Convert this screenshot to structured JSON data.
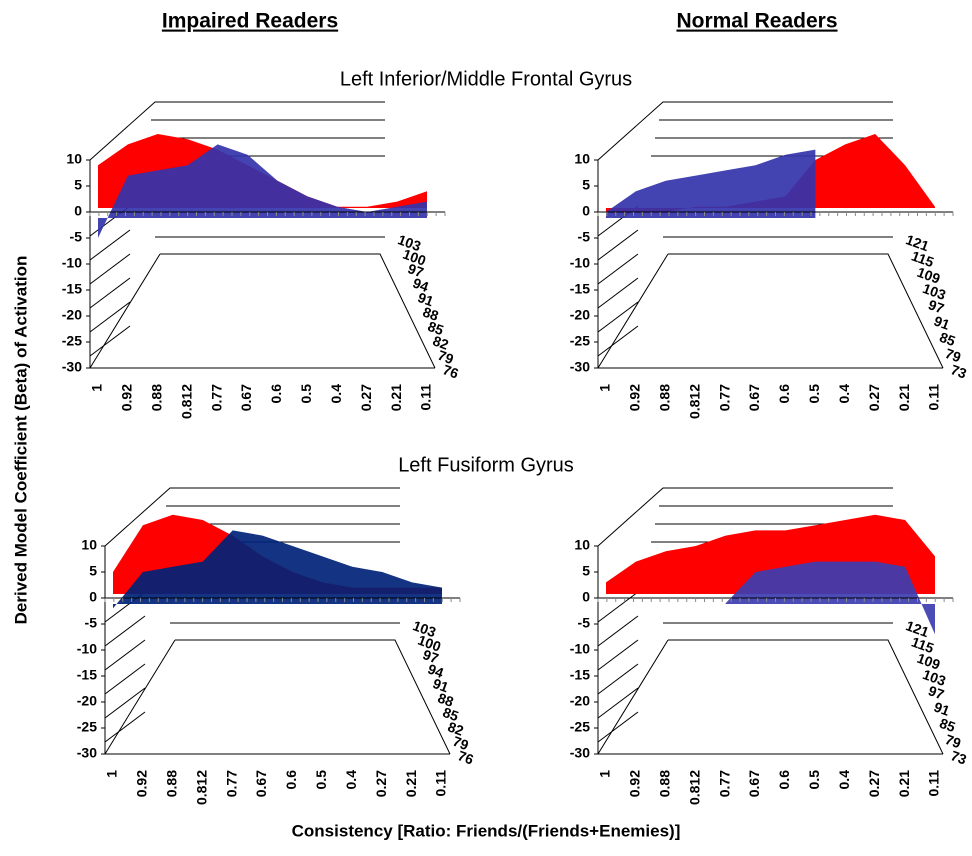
{
  "figure": {
    "column_titles": [
      "Impaired Readers",
      "Normal Readers"
    ],
    "row_titles": [
      "Left Inferior/Middle Frontal Gyrus",
      "Left Fusiform Gyrus"
    ],
    "y_axis_label": "Derived Model Coefficient (Beta) of Activation",
    "x_axis_label": "Consistency [Ratio: Friends/(Friends+Enemies)]"
  },
  "chart_data": [
    {
      "type": "surface",
      "categories": [
        "1",
        "0.92",
        "0.88",
        "0.812",
        "0.77",
        "0.67",
        "0.6",
        "0.5",
        "0.4",
        "0.27",
        "0.21",
        "0.11"
      ],
      "depth_categories": [
        "76",
        "79",
        "82",
        "85",
        "88",
        "91",
        "94",
        "97",
        "100",
        "103"
      ],
      "zlim": [
        -30,
        10
      ],
      "zticks": [
        -30,
        -25,
        -20,
        -15,
        -10,
        -5,
        0,
        5,
        10
      ],
      "series": [
        {
          "color": "#ff0000",
          "values": [
            9,
            13,
            15,
            14,
            12,
            9,
            6,
            3,
            1,
            1,
            2,
            4
          ]
        },
        {
          "color": "#3333aa",
          "values": [
            -5,
            7,
            8,
            9,
            13,
            11,
            6,
            3,
            1,
            0,
            1,
            2
          ]
        }
      ]
    },
    {
      "type": "surface",
      "categories": [
        "1",
        "0.92",
        "0.88",
        "0.812",
        "0.77",
        "0.67",
        "0.6",
        "0.5",
        "0.4",
        "0.27",
        "0.21",
        "0.11"
      ],
      "depth_categories": [
        "73",
        "79",
        "85",
        "91",
        "97",
        "103",
        "109",
        "115",
        "121"
      ],
      "zlim": [
        -30,
        10
      ],
      "zticks": [
        -30,
        -25,
        -20,
        -15,
        -10,
        -5,
        0,
        5,
        10
      ],
      "series": [
        {
          "color": "#ff0000",
          "values": [
            0,
            0,
            0,
            1,
            1,
            2,
            3,
            10,
            13,
            15,
            9,
            1
          ]
        },
        {
          "color": "#3333aa",
          "values": [
            0,
            4,
            6,
            7,
            8,
            9,
            11,
            12,
            null,
            null,
            null,
            null
          ]
        }
      ]
    },
    {
      "type": "surface",
      "categories": [
        "1",
        "0.92",
        "0.88",
        "0.812",
        "0.77",
        "0.67",
        "0.6",
        "0.5",
        "0.4",
        "0.27",
        "0.21",
        "0.11"
      ],
      "depth_categories": [
        "76",
        "79",
        "82",
        "85",
        "88",
        "91",
        "94",
        "97",
        "100",
        "103"
      ],
      "zlim": [
        -30,
        10
      ],
      "zticks": [
        -30,
        -25,
        -20,
        -15,
        -10,
        -5,
        0,
        5,
        10
      ],
      "series": [
        {
          "color": "#ff0000",
          "values": [
            5,
            14,
            16,
            15,
            12,
            8,
            5,
            3,
            2,
            2,
            2,
            2
          ]
        },
        {
          "color": "#002277",
          "values": [
            -2,
            5,
            6,
            7,
            13,
            12,
            10,
            8,
            6,
            5,
            3,
            2
          ]
        }
      ]
    },
    {
      "type": "surface",
      "categories": [
        "1",
        "0.92",
        "0.88",
        "0.812",
        "0.77",
        "0.67",
        "0.6",
        "0.5",
        "0.4",
        "0.27",
        "0.21",
        "0.11"
      ],
      "depth_categories": [
        "73",
        "79",
        "85",
        "91",
        "97",
        "103",
        "109",
        "115",
        "121"
      ],
      "zlim": [
        -30,
        10
      ],
      "zticks": [
        -30,
        -25,
        -20,
        -15,
        -10,
        -5,
        0,
        5,
        10
      ],
      "series": [
        {
          "color": "#ff0000",
          "values": [
            3,
            7,
            9,
            10,
            12,
            13,
            13,
            14,
            15,
            16,
            15,
            8
          ]
        },
        {
          "color": "#3d3db0",
          "values": [
            null,
            null,
            null,
            null,
            -1,
            5,
            6,
            7,
            7,
            7,
            6,
            -7
          ]
        }
      ]
    }
  ]
}
